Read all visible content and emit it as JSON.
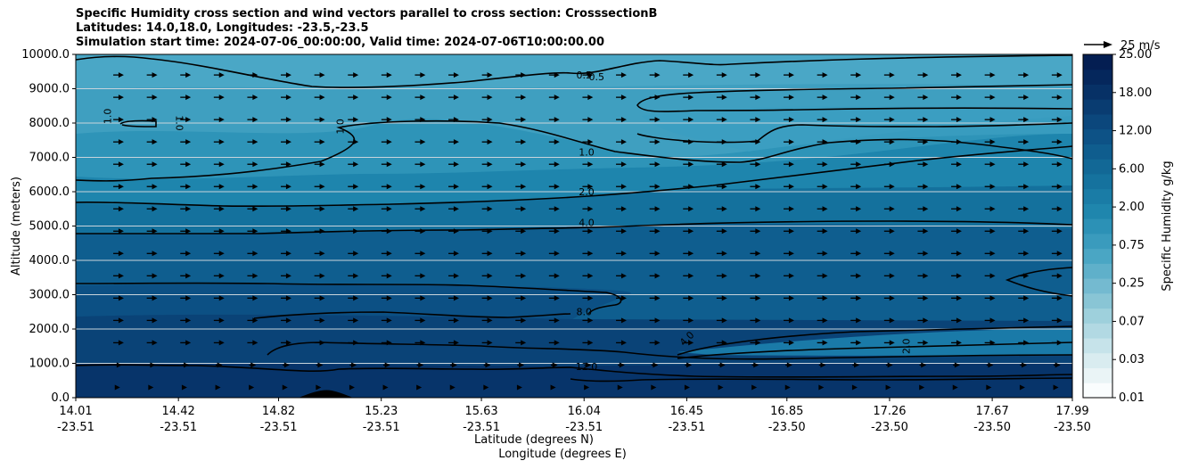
{
  "chart_data": {
    "type": "contourf",
    "title_lines": [
      "Specific Humidity cross section and wind vectors parallel to cross section: CrosssectionB",
      "Latitudes: 14.0,18.0, Longitudes: -23.5,-23.5",
      "Simulation start time: 2024-07-06_00:00:00, Valid time: 2024-07-06T10:00:00.00"
    ],
    "ylabel": "Altitude (meters)",
    "xlabel_lat": "Latitude (degrees N)",
    "xlabel_lon": "Longitude (degrees E)",
    "ylim": [
      0,
      10000
    ],
    "yticks": [
      "0.0",
      "1000.0",
      "2000.0",
      "3000.0",
      "4000.0",
      "5000.0",
      "6000.0",
      "7000.0",
      "8000.0",
      "9000.0",
      "10000.0"
    ],
    "xticks": [
      {
        "lat": "14.01",
        "lon": "-23.51"
      },
      {
        "lat": "14.42",
        "lon": "-23.51"
      },
      {
        "lat": "14.82",
        "lon": "-23.51"
      },
      {
        "lat": "15.23",
        "lon": "-23.51"
      },
      {
        "lat": "15.63",
        "lon": "-23.51"
      },
      {
        "lat": "16.04",
        "lon": "-23.51"
      },
      {
        "lat": "16.45",
        "lon": "-23.51"
      },
      {
        "lat": "16.85",
        "lon": "-23.50"
      },
      {
        "lat": "17.26",
        "lon": "-23.50"
      },
      {
        "lat": "17.67",
        "lon": "-23.50"
      },
      {
        "lat": "17.99",
        "lon": "-23.50"
      }
    ],
    "colorbar": {
      "label": "Specific Humidity g/kg",
      "ticks": [
        "0.01",
        "0.03",
        "0.07",
        "0.25",
        "0.75",
        "2.00",
        "6.00",
        "12.00",
        "18.00",
        "25.00"
      ],
      "colors": [
        "#fafdfe",
        "#eaf4f6",
        "#d9ecf0",
        "#c6e3ea",
        "#b2d9e3",
        "#9ed0dc",
        "#89c5d5",
        "#74bad0",
        "#5fb0ca",
        "#4aa6c4",
        "#3a9bbd",
        "#2c91b6",
        "#1f86ad",
        "#1a7ca6",
        "#15729e",
        "#126896",
        "#0f5d8e",
        "#0d5286",
        "#0b477c",
        "#093c71",
        "#073166",
        "#05275c",
        "#041e52"
      ]
    },
    "quiver_key": {
      "label": "25 m/s",
      "value": 25
    },
    "wind_vectors": {
      "direction": "positive x (northward along section)",
      "max_speed_ms": 15
    },
    "humidity_layers_gkg": [
      {
        "top_m": 10000,
        "value": 0.5
      },
      {
        "top_m": 8000,
        "value": 1.0
      },
      {
        "top_m": 6500,
        "value": 2.0
      },
      {
        "top_m": 5500,
        "value": 4.0
      },
      {
        "top_m": 4800,
        "value": 6.0
      },
      {
        "top_m": 3300,
        "value": 8.0
      },
      {
        "top_m": 1000,
        "value": 12.0
      }
    ],
    "contour_labels": [
      {
        "text": "0.5",
        "lat": 16.04,
        "alt": 9300
      },
      {
        "text": "0.5",
        "lat": 16.09,
        "alt": 9250
      },
      {
        "text": "1.0",
        "lat": 14.15,
        "alt": 8200,
        "rotate": -90
      },
      {
        "text": "1.0",
        "lat": 14.41,
        "alt": 8000,
        "rotate": 90
      },
      {
        "text": "1.0",
        "lat": 15.08,
        "alt": 7900,
        "rotate": -90
      },
      {
        "text": "1.0",
        "lat": 16.05,
        "alt": 7050
      },
      {
        "text": "2.0",
        "lat": 16.05,
        "alt": 5900
      },
      {
        "text": "4.0",
        "lat": 16.05,
        "alt": 5000
      },
      {
        "text": "8.0",
        "lat": 16.04,
        "alt": 2400
      },
      {
        "text": "12.0",
        "lat": 16.05,
        "alt": 800
      },
      {
        "text": "4.0",
        "lat": 16.46,
        "alt": 1650,
        "rotate": -45
      },
      {
        "text": "2.0",
        "lat": 17.34,
        "alt": 1500,
        "rotate": -90
      }
    ]
  }
}
